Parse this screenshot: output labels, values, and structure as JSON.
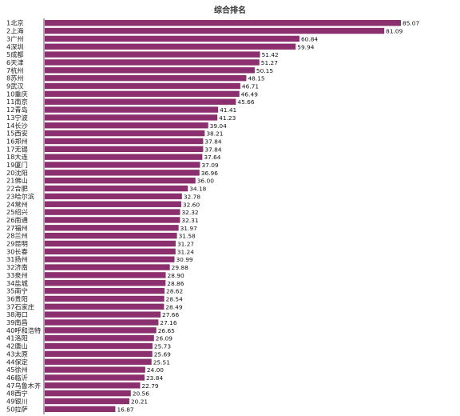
{
  "chart_data": {
    "type": "bar",
    "orientation": "horizontal",
    "title": "综合排名",
    "xlabel": "",
    "ylabel": "",
    "xlim": [
      0,
      85.07
    ],
    "grid": false,
    "legend": "none",
    "bar_color": "#8b2f6f",
    "categories": [
      "1北京",
      "2上海",
      "3广州",
      "4深圳",
      "5成都",
      "6天津",
      "7杭州",
      "8苏州",
      "9武汉",
      "10重庆",
      "11南京",
      "12青岛",
      "13宁波",
      "14长沙",
      "15西安",
      "16郑州",
      "17无锡",
      "18大连",
      "19厦门",
      "20沈阳",
      "21佛山",
      "22合肥",
      "23哈尔滨",
      "24常州",
      "25绍兴",
      "26南通",
      "27福州",
      "28兰州",
      "29昆明",
      "30长春",
      "31扬州",
      "32济南",
      "33泉州",
      "34盐城",
      "35南宁",
      "36贵阳",
      "37石家庄",
      "38海口",
      "39南昌",
      "40呼和浩特",
      "41洛阳",
      "42唐山",
      "43太原",
      "44保定",
      "45徐州",
      "46临沂",
      "47乌鲁木齐",
      "48西宁",
      "49银川",
      "50拉萨"
    ],
    "values": [
      85.07,
      81.09,
      60.84,
      59.94,
      51.42,
      51.27,
      50.15,
      48.15,
      46.71,
      46.49,
      45.66,
      41.41,
      41.23,
      39.04,
      38.21,
      37.84,
      37.84,
      37.64,
      37.09,
      36.96,
      36.0,
      34.18,
      32.78,
      32.6,
      32.32,
      32.31,
      31.97,
      31.58,
      31.27,
      31.24,
      30.99,
      29.88,
      28.9,
      28.86,
      28.62,
      28.54,
      28.49,
      27.66,
      27.16,
      26.65,
      26.09,
      25.73,
      25.69,
      25.51,
      24.0,
      23.84,
      22.79,
      20.56,
      20.21,
      16.87
    ],
    "value_labels": [
      "85.07",
      "81.09",
      "60.84",
      "59.94",
      "51.42",
      "51.27",
      "50.15",
      "48.15",
      "46.71",
      "46.49",
      "45.66",
      "41.41",
      "41.23",
      "39.04",
      "38.21",
      "37.84",
      "37.84",
      "37.64",
      "37.09",
      "36.96",
      "36.00",
      "34.18",
      "32.78",
      "32.60",
      "32.32",
      "32.31",
      "31.97",
      "31.58",
      "31.27",
      "31.24",
      "30.99",
      "29.88",
      "28.90",
      "28.86",
      "28.62",
      "28.54",
      "28.49",
      "27.66",
      "27.16",
      "26.65",
      "26.09",
      "25.73",
      "25.69",
      "25.51",
      "24.00",
      "23.84",
      "22.79",
      "20.56",
      "20.21",
      "16.87"
    ]
  }
}
